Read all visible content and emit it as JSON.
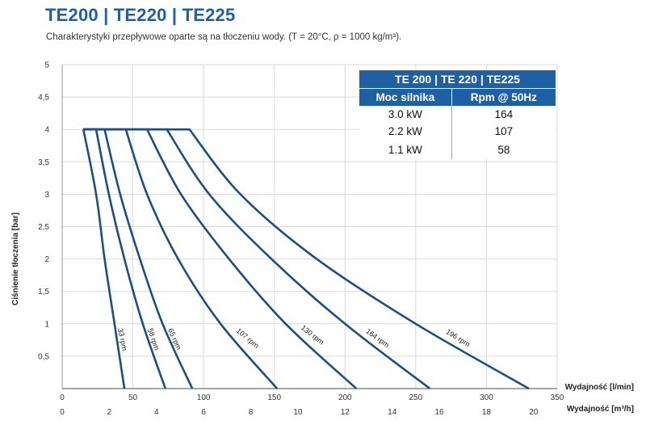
{
  "header": {
    "title": "TE200 | TE220 | TE225",
    "subtitle": "Charakterystyki przepływowe oparte są na tłoczeniu wody. (T = 20°C, ρ = 1000 kg/m³)."
  },
  "table": {
    "title": "TE 200 | TE 220 | TE225",
    "col1": "Moc silnika",
    "col2": "Rpm @ 50Hz",
    "rows": [
      {
        "power": "3.0 kW",
        "rpm": "164"
      },
      {
        "power": "2.2 kW",
        "rpm": "107"
      },
      {
        "power": "1.1 kW",
        "rpm": "58"
      }
    ]
  },
  "colors": {
    "curve": "#1a4f86",
    "title": "#1f5fa3",
    "grid": "#d9d9d9"
  },
  "chart_data": {
    "type": "line",
    "title": "",
    "ylabel": "Ciśnienie tłoczenia [bar]",
    "xlabel": "Wydajność [l/min]",
    "xlabel2": "Wydajność [m³/h]",
    "xlim": [
      0,
      350
    ],
    "ylim": [
      0,
      5
    ],
    "xticks": [
      0,
      50,
      100,
      150,
      200,
      250,
      300,
      350
    ],
    "yticks": [
      0,
      0.5,
      1,
      1.5,
      2,
      2.5,
      3,
      3.5,
      4,
      4.5,
      5
    ],
    "ytick_labels": [
      "",
      "0,5",
      "1",
      "1,5",
      "2",
      "2,5",
      "3",
      "3,5",
      "4",
      "4,5",
      "5"
    ],
    "x2ticks": [
      0,
      2,
      4,
      6,
      8,
      10,
      12,
      14,
      16,
      18,
      20
    ],
    "grid": true,
    "max_pressure_line": {
      "x": [
        0,
        15
      ],
      "y": [
        4,
        4
      ],
      "style": "dotted"
    },
    "series": [
      {
        "name": "33 rpm",
        "x": [
          15,
          24,
          30,
          37,
          44
        ],
        "y": [
          4,
          3,
          2,
          1,
          0
        ]
      },
      {
        "name": "58 rpm",
        "x": [
          24,
          33,
          44,
          57,
          73
        ],
        "y": [
          4,
          3,
          2,
          1,
          0
        ]
      },
      {
        "name": "65 rpm",
        "x": [
          30,
          41,
          55,
          71,
          92
        ],
        "y": [
          4,
          3,
          2,
          1,
          0
        ]
      },
      {
        "name": "107 rpm",
        "x": [
          45,
          60,
          82,
          112,
          152
        ],
        "y": [
          4,
          3,
          2,
          1,
          0
        ]
      },
      {
        "name": "130 rpm",
        "x": [
          60,
          84,
          118,
          158,
          208
        ],
        "y": [
          4,
          3,
          2,
          1,
          0
        ]
      },
      {
        "name": "164 rpm",
        "x": [
          74,
          104,
          148,
          200,
          260
        ],
        "y": [
          4,
          3,
          2,
          1,
          0
        ]
      },
      {
        "name": "196 rpm",
        "x": [
          90,
          126,
          180,
          250,
          330
        ],
        "y": [
          4,
          3,
          2,
          1,
          0
        ]
      }
    ]
  }
}
